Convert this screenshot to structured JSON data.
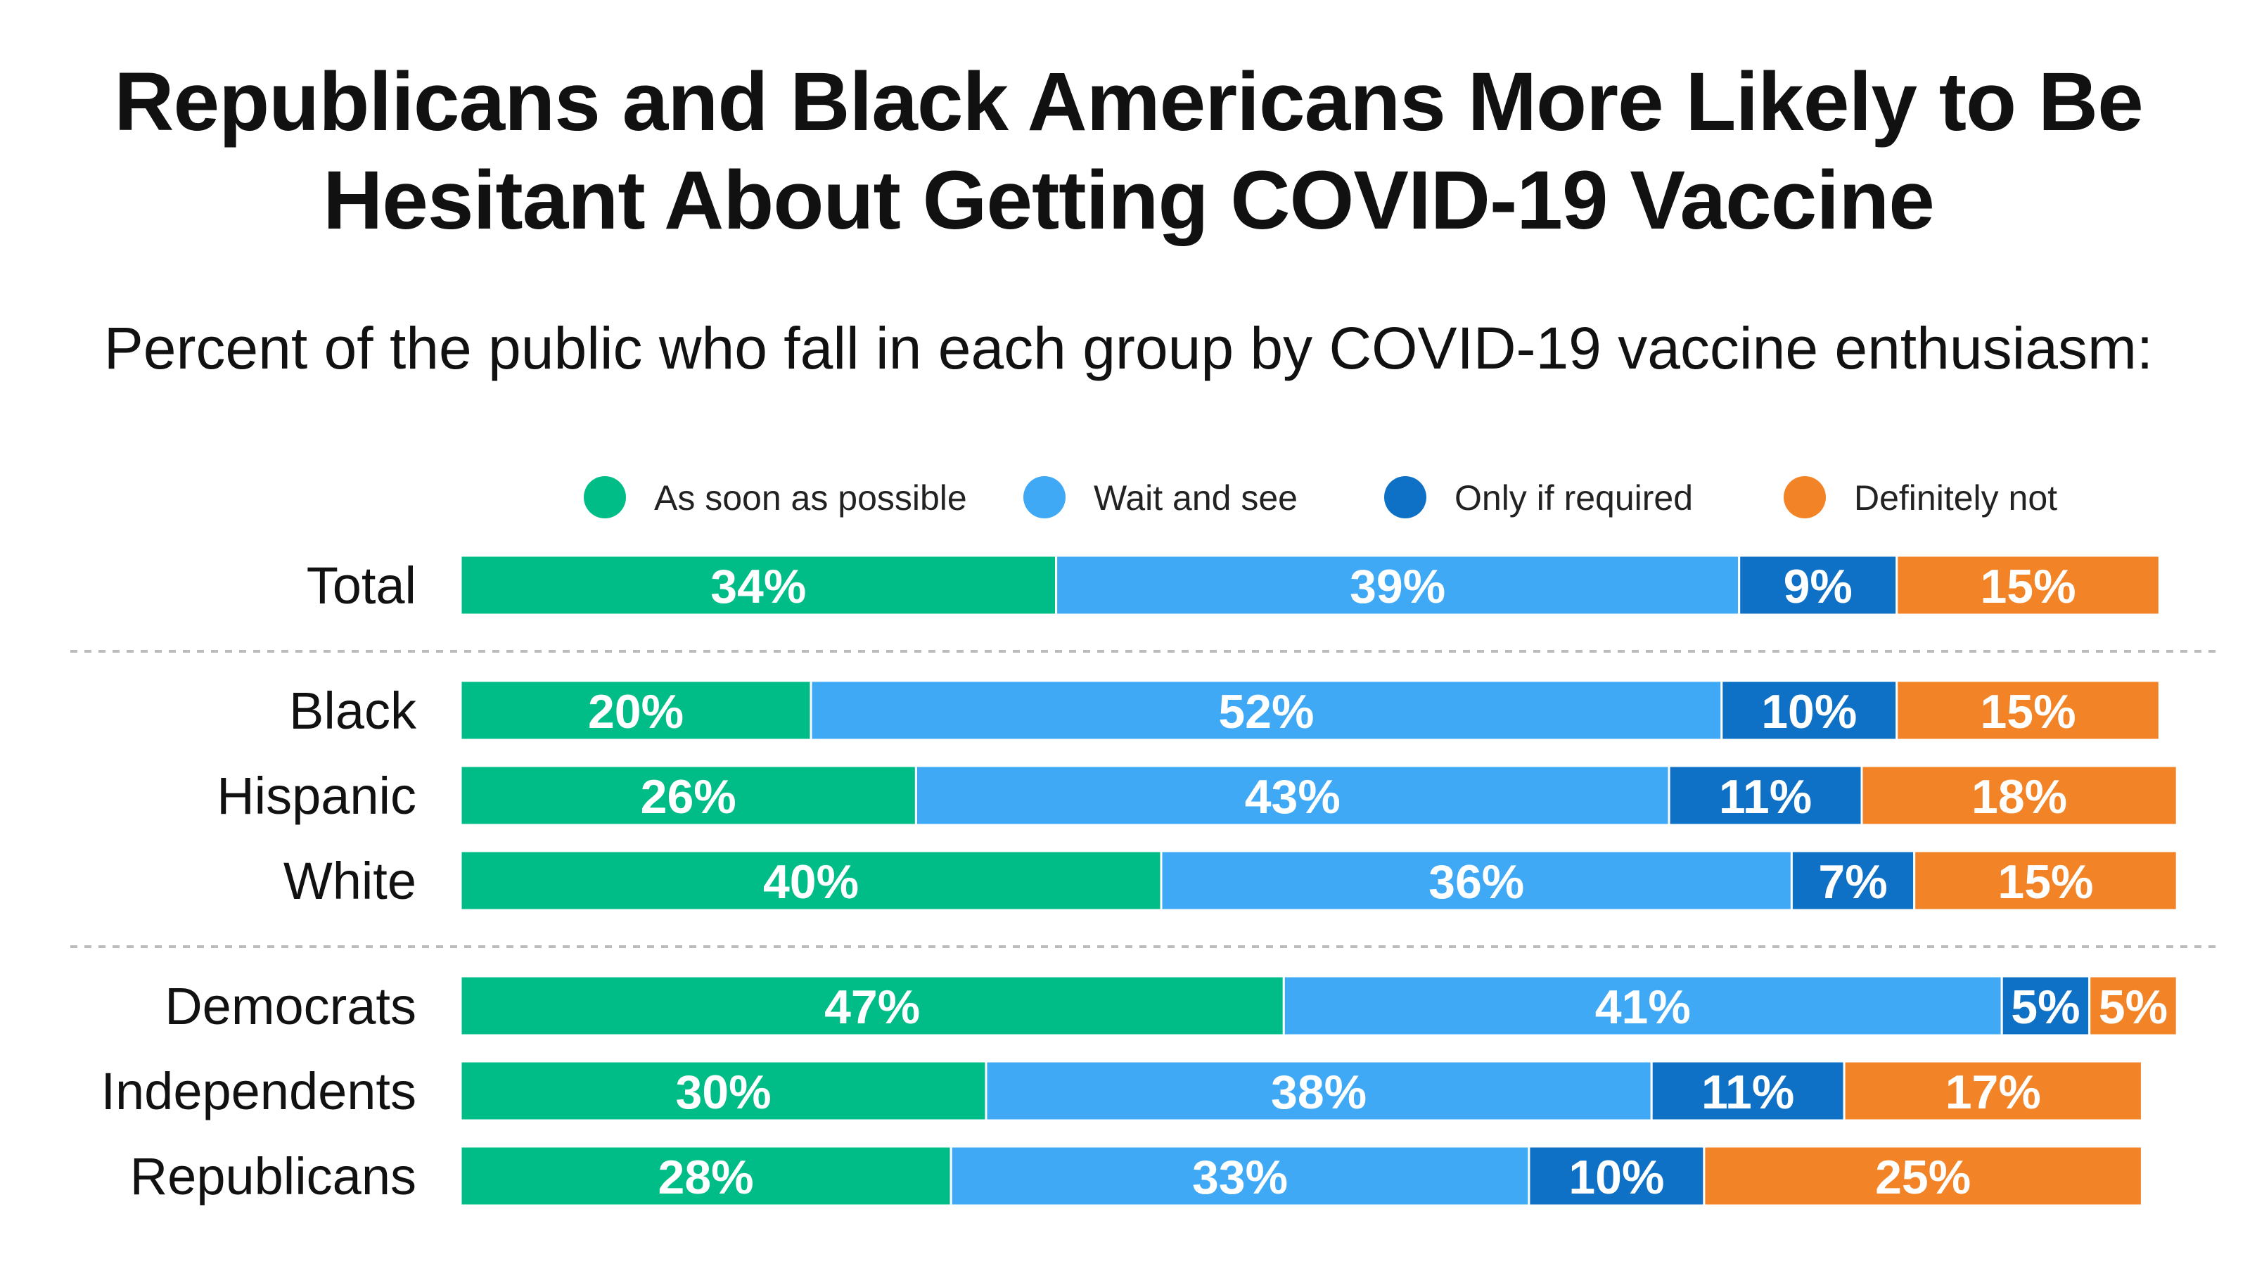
{
  "chart_data": {
    "type": "bar",
    "orientation": "horizontal",
    "stacked": true,
    "title": "Republicans and Black Americans More Likely to Be Hesitant About Getting COVID-19 Vaccine",
    "title_line1": "Republicans and Black Americans More Likely to Be",
    "title_line2": "Hesitant About Getting COVID-19 Vaccine",
    "subtitle": "Percent of the public who fall in each group by COVID-19 vaccine enthusiasm:",
    "xlim": [
      0,
      100
    ],
    "legend_position": "top",
    "series": [
      {
        "name": "As soon as possible",
        "color": "#00bd87"
      },
      {
        "name": "Wait and see",
        "color": "#3fa9f5"
      },
      {
        "name": "Only if required",
        "color": "#0e71c6"
      },
      {
        "name": "Definitely not",
        "color": "#f28327"
      }
    ],
    "groups": [
      {
        "rows": [
          {
            "category": "Total",
            "values": [
              34,
              39,
              9,
              15
            ]
          }
        ]
      },
      {
        "rows": [
          {
            "category": "Black",
            "values": [
              20,
              52,
              10,
              15
            ]
          },
          {
            "category": "Hispanic",
            "values": [
              26,
              43,
              11,
              18
            ]
          },
          {
            "category": "White",
            "values": [
              40,
              36,
              7,
              15
            ]
          }
        ]
      },
      {
        "rows": [
          {
            "category": "Democrats",
            "values": [
              47,
              41,
              5,
              5
            ]
          },
          {
            "category": "Independents",
            "values": [
              30,
              38,
              11,
              17
            ]
          },
          {
            "category": "Republicans",
            "values": [
              28,
              33,
              10,
              25
            ]
          }
        ]
      }
    ]
  }
}
